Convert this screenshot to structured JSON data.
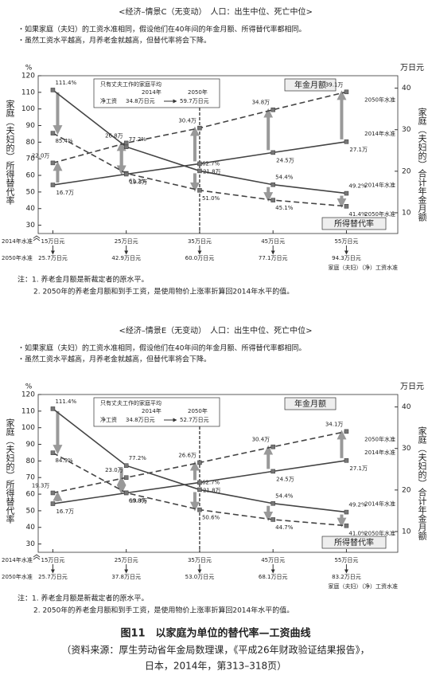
{
  "chart_data": [
    {
      "type": "line",
      "title": "<经济–情景C（无变动）　人口：出生中位、死亡中位>",
      "bullets": [
        "・如果家庭（夫妇）的工资水准相同，假设他们在40年间的年金月额、所得替代率都相同。",
        "・虽然工资水平越高，月养老金就越高，但替代率将会下降。"
      ],
      "notes": [
        "注：1. 养老金月额是新裁定者的原水平。",
        "2. 2050年的养老金月额和到手工资，是使用物价上涨率折算回2014年水平的值。"
      ],
      "y_unit": "%",
      "y2_unit": "万日元",
      "y_label": "家庭（夫妇的）所得替代率",
      "y2_label": "家庭（夫妇的）合计年金月额",
      "x_label": "家庭（夫妇）（净）工资水准",
      "x_row_labels": [
        "2014年水准",
        "2050年水准"
      ],
      "group_labels": [
        "年金月额",
        "所得替代率"
      ],
      "annotation": [
        "只有丈夫工作的家庭平均",
        "2014年",
        "2050年",
        "净工资",
        "34.8万日元",
        "59.7万日元"
      ],
      "x": [
        15,
        25,
        35,
        45,
        55
      ],
      "xlim": [
        13,
        62
      ],
      "xticks": [
        {
          "value": 15,
          "label": "15万日元"
        },
        {
          "value": 25,
          "label": "25万日元"
        },
        {
          "value": 35,
          "label": "35万日元"
        },
        {
          "value": 45,
          "label": "45万日元"
        },
        {
          "value": 55,
          "label": "55万日元"
        }
      ],
      "x2_tick_labels": [
        "25.7万日元",
        "42.9万日元",
        "60.0万日元",
        "77.1万日元",
        "94.3万日元"
      ],
      "ylim": [
        25,
        120
      ],
      "yticks": [
        30,
        40,
        50,
        60,
        70,
        80,
        90,
        100,
        110,
        120
      ],
      "y2lim": [
        5,
        43
      ],
      "y2ticks": [
        10,
        20,
        30,
        40
      ],
      "series": [
        {
          "name": "2014年水准",
          "color": "#444444",
          "line_style": "solid",
          "values": [
            111.4,
            77.2,
            62.7,
            54.4,
            49.2
          ],
          "value_labels": [
            "111.4%",
            "77.2%",
            "62.7%",
            "54.4%",
            "49.2%"
          ]
        },
        {
          "name": "2050年水准",
          "color": "#444444",
          "line_style": "dashed",
          "values": [
            85.4,
            61.2,
            51.0,
            45.1,
            41.4
          ],
          "value_labels": [
            "85.4%",
            "61.2%",
            "51.0%",
            "45.1%",
            "41.4%"
          ]
        },
        {
          "name": "2014年水准",
          "color": "#444444",
          "line_style": "solid",
          "axis": "y2",
          "values": [
            16.7,
            19.3,
            21.8,
            24.5,
            27.1
          ],
          "value_labels": [
            "16.7万",
            "19.3万",
            "21.8万",
            "24.5万",
            "27.1万"
          ]
        },
        {
          "name": "2050年水准",
          "color": "#444444",
          "line_style": "dashed",
          "axis": "y2",
          "values": [
            22.0,
            26.8,
            30.4,
            34.8,
            39.1
          ],
          "value_labels": [
            "22.0万",
            "26.8万",
            "30.4万",
            "34.8万",
            "39.1万"
          ]
        }
      ]
    },
    {
      "type": "line",
      "title": "<经济–情景E（无变动）　人口：出生中位、死亡中位>",
      "bullets": [
        "・如果家庭（夫妇）的工资水准相同，假设他们在40年间的年金月额、所得替代率都相同。",
        "・虽然工资水平越高，月养老金就越高，但替代率将会下降。"
      ],
      "notes": [
        "注：1. 养老金月额是新裁定者的原水平。",
        "2. 2050年的养老金月额和到手工资，是使用物价上涨率折算回2014年水平的值。"
      ],
      "y_unit": "%",
      "y2_unit": "万日元",
      "y_label": "家庭（夫妇的）所得替代率",
      "y2_label": "家庭（夫妇的）合计年金月额",
      "x_label": "家庭（夫妇）（净）工资水准",
      "x_row_labels": [
        "2014年水准",
        "2050年水准"
      ],
      "group_labels": [
        "年金月额",
        "所得替代率"
      ],
      "annotation": [
        "只有丈夫工作的家庭平均",
        "2014年",
        "2050年",
        "净工资",
        "34.8万日元",
        "52.7万日元"
      ],
      "x": [
        15,
        25,
        35,
        45,
        55
      ],
      "xlim": [
        13,
        62
      ],
      "xticks": [
        {
          "value": 15,
          "label": "15万日元"
        },
        {
          "value": 25,
          "label": "25万日元"
        },
        {
          "value": 35,
          "label": "35万日元"
        },
        {
          "value": 45,
          "label": "45万日元"
        },
        {
          "value": 55,
          "label": "55万日元"
        }
      ],
      "x2_tick_labels": [
        "25.7万日元",
        "37.8万日元",
        "53.0万日元",
        "68.1万日元",
        "83.2万日元"
      ],
      "ylim": [
        25,
        120
      ],
      "yticks": [
        30,
        40,
        50,
        60,
        70,
        80,
        90,
        100,
        110,
        120
      ],
      "y2lim": [
        5,
        43
      ],
      "y2ticks": [
        10,
        20,
        30,
        40
      ],
      "series": [
        {
          "name": "2014年水准",
          "color": "#444444",
          "line_style": "solid",
          "values": [
            111.4,
            77.2,
            62.7,
            54.4,
            49.2
          ],
          "value_labels": [
            "111.4%",
            "77.2%",
            "62.7%",
            "54.4%",
            "49.2%"
          ]
        },
        {
          "name": "2050年水准",
          "color": "#444444",
          "line_style": "dashed",
          "values": [
            84.9,
            60.8,
            50.6,
            44.7,
            41.0
          ],
          "value_labels": [
            "84.9%",
            "60.8%",
            "50.6%",
            "44.7%",
            "41.0%"
          ]
        },
        {
          "name": "2014年水准",
          "color": "#444444",
          "line_style": "solid",
          "axis": "y2",
          "values": [
            16.7,
            19.3,
            21.8,
            24.5,
            27.1
          ],
          "value_labels": [
            "16.7万",
            "19.3万",
            "21.8万",
            "24.5万",
            "27.1万"
          ]
        },
        {
          "name": "2050年水准",
          "color": "#444444",
          "line_style": "dashed",
          "axis": "y2",
          "values": [
            19.3,
            23.0,
            26.6,
            30.4,
            34.1
          ],
          "value_labels": [
            "19.3万",
            "23.0万",
            "26.6万",
            "30.4万",
            "34.1万"
          ]
        }
      ]
    }
  ],
  "figure": {
    "title": "图11　以家庭为单位的替代率—工资曲线",
    "source": [
      "（资料来源：厚生劳动省年金局数理课，《平成26年财政验证结果报告》，",
      "日本，2014年，第313–318页）"
    ]
  }
}
